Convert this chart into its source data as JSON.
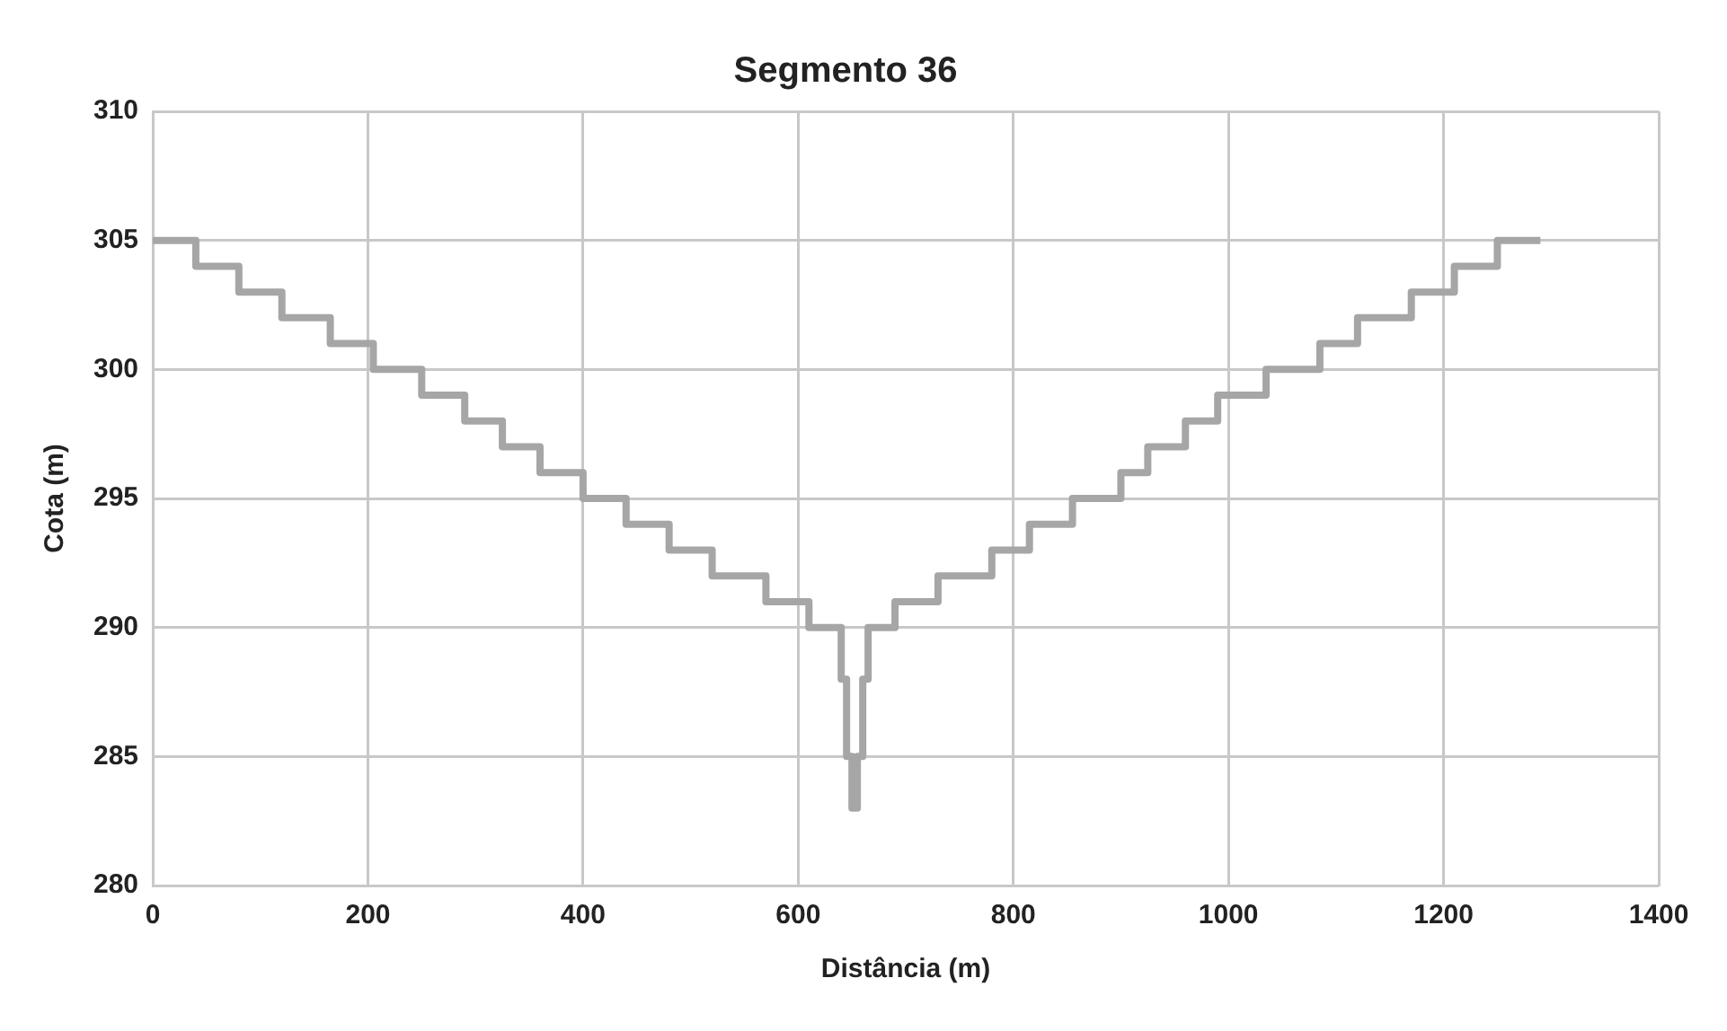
{
  "chart_data": {
    "type": "step",
    "title": "Segmento 36",
    "xlabel": "Distância (m)",
    "ylabel": "Cota (m)",
    "x": [
      0,
      40,
      80,
      120,
      165,
      205,
      250,
      290,
      325,
      360,
      400,
      440,
      480,
      520,
      570,
      610,
      640,
      645,
      650,
      655,
      660,
      665,
      690,
      730,
      780,
      815,
      855,
      900,
      925,
      960,
      990,
      1035,
      1085,
      1120,
      1170,
      1210,
      1250,
      1290
    ],
    "series": [
      {
        "color": "#a6a6a6",
        "values": [
          305,
          304,
          303,
          302,
          301,
          300,
          299,
          298,
          297,
          296,
          295,
          294,
          293,
          292,
          291,
          290,
          288,
          285,
          283,
          285,
          288,
          290,
          291,
          292,
          293,
          294,
          295,
          296,
          297,
          298,
          299,
          300,
          301,
          302,
          303,
          304,
          305,
          305
        ]
      }
    ],
    "xlim": [
      0,
      1400
    ],
    "xticks": [
      0,
      200,
      400,
      600,
      800,
      1000,
      1200,
      1400
    ],
    "ylim": [
      280,
      310
    ],
    "yticks": [
      280,
      285,
      290,
      295,
      300,
      305,
      310
    ],
    "grid": true,
    "legend": false,
    "marker": "none",
    "line_style": "solid"
  }
}
